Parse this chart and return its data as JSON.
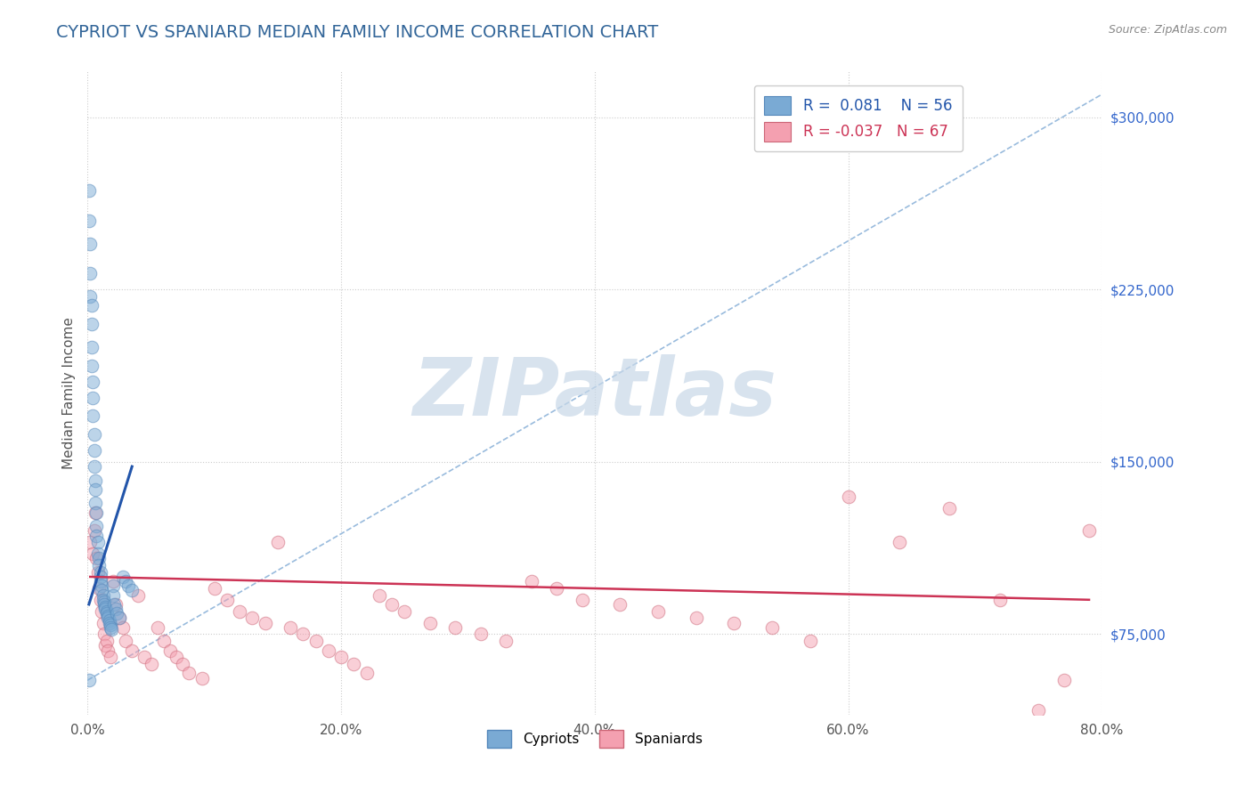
{
  "title": "CYPRIOT VS SPANIARD MEDIAN FAMILY INCOME CORRELATION CHART",
  "source_text": "Source: ZipAtlas.com",
  "ylabel": "Median Family Income",
  "xlim": [
    0.0,
    0.8
  ],
  "ylim": [
    40000,
    320000
  ],
  "xtick_labels": [
    "0.0%",
    "20.0%",
    "40.0%",
    "60.0%",
    "80.0%"
  ],
  "xtick_vals": [
    0.0,
    0.2,
    0.4,
    0.6,
    0.8
  ],
  "ytick_vals": [
    75000,
    150000,
    225000,
    300000
  ],
  "ytick_labels": [
    "$75,000",
    "$150,000",
    "$225,000",
    "$300,000"
  ],
  "grid_color": "#cccccc",
  "background_color": "#ffffff",
  "title_color": "#336699",
  "title_fontsize": 14,
  "watermark_text": "ZIPatlas",
  "watermark_color": "#c8d8e8",
  "watermark_fontsize": 65,
  "cypriot_color": "#7aaad4",
  "cypriot_edge_color": "#5588bb",
  "spaniard_color": "#f4a0b0",
  "spaniard_edge_color": "#cc6677",
  "cypriot_R": 0.081,
  "cypriot_N": 56,
  "spaniard_R": -0.037,
  "spaniard_N": 67,
  "cypriot_line_color": "#2255aa",
  "spaniard_line_color": "#cc3355",
  "ref_line_color": "#99bbdd",
  "scatter_size": 110,
  "scatter_alpha": 0.5,
  "cypriot_x": [
    0.001,
    0.001,
    0.002,
    0.002,
    0.002,
    0.003,
    0.003,
    0.003,
    0.003,
    0.004,
    0.004,
    0.004,
    0.005,
    0.005,
    0.005,
    0.006,
    0.006,
    0.006,
    0.007,
    0.007,
    0.007,
    0.008,
    0.008,
    0.009,
    0.009,
    0.01,
    0.01,
    0.01,
    0.011,
    0.011,
    0.012,
    0.012,
    0.013,
    0.013,
    0.014,
    0.014,
    0.015,
    0.015,
    0.016,
    0.016,
    0.017,
    0.017,
    0.018,
    0.018,
    0.019,
    0.02,
    0.02,
    0.021,
    0.022,
    0.023,
    0.025,
    0.028,
    0.03,
    0.032,
    0.035,
    0.001
  ],
  "cypriot_y": [
    268000,
    255000,
    245000,
    232000,
    222000,
    218000,
    210000,
    200000,
    192000,
    185000,
    178000,
    170000,
    162000,
    155000,
    148000,
    142000,
    138000,
    132000,
    128000,
    122000,
    118000,
    115000,
    110000,
    108000,
    105000,
    102000,
    100000,
    98000,
    96000,
    94000,
    92000,
    90000,
    89000,
    88000,
    87000,
    86000,
    85000,
    84000,
    83000,
    82000,
    81000,
    80000,
    79000,
    78000,
    77000,
    96000,
    92000,
    88000,
    86000,
    84000,
    82000,
    100000,
    98000,
    96000,
    94000,
    55000
  ],
  "spaniard_x": [
    0.002,
    0.004,
    0.005,
    0.006,
    0.007,
    0.008,
    0.009,
    0.01,
    0.011,
    0.012,
    0.013,
    0.014,
    0.015,
    0.016,
    0.018,
    0.02,
    0.022,
    0.025,
    0.028,
    0.03,
    0.035,
    0.04,
    0.045,
    0.05,
    0.055,
    0.06,
    0.065,
    0.07,
    0.075,
    0.08,
    0.09,
    0.1,
    0.11,
    0.12,
    0.13,
    0.14,
    0.15,
    0.16,
    0.17,
    0.18,
    0.19,
    0.2,
    0.21,
    0.22,
    0.23,
    0.24,
    0.25,
    0.27,
    0.29,
    0.31,
    0.33,
    0.35,
    0.37,
    0.39,
    0.42,
    0.45,
    0.48,
    0.51,
    0.54,
    0.57,
    0.6,
    0.64,
    0.68,
    0.72,
    0.75,
    0.77,
    0.79
  ],
  "spaniard_y": [
    115000,
    110000,
    120000,
    128000,
    108000,
    102000,
    95000,
    90000,
    85000,
    80000,
    75000,
    70000,
    72000,
    68000,
    65000,
    98000,
    88000,
    82000,
    78000,
    72000,
    68000,
    92000,
    65000,
    62000,
    78000,
    72000,
    68000,
    65000,
    62000,
    58000,
    56000,
    95000,
    90000,
    85000,
    82000,
    80000,
    115000,
    78000,
    75000,
    72000,
    68000,
    65000,
    62000,
    58000,
    92000,
    88000,
    85000,
    80000,
    78000,
    75000,
    72000,
    98000,
    95000,
    90000,
    88000,
    85000,
    82000,
    80000,
    78000,
    72000,
    135000,
    115000,
    130000,
    90000,
    42000,
    55000,
    120000
  ],
  "ref_line_x": [
    0.0,
    0.8
  ],
  "ref_line_y": [
    55000,
    310000
  ],
  "cypriot_trendline_x": [
    0.001,
    0.035
  ],
  "cypriot_trendline_y": [
    88000,
    148000
  ],
  "spaniard_trendline_x": [
    0.002,
    0.79
  ],
  "spaniard_trendline_y": [
    100000,
    90000
  ]
}
